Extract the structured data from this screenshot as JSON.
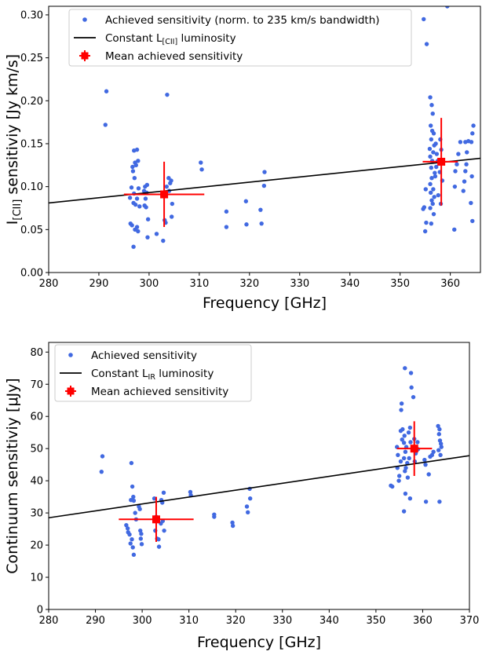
{
  "chart_data": [
    {
      "type": "scatter",
      "xlabel": "Frequency [GHz]",
      "ylabel_main": "I",
      "ylabel_sub": "[CII]",
      "ylabel_rest": " sensitiviy [Jy km/s]",
      "xlim": [
        280,
        366
      ],
      "ylim": [
        0,
        0.31
      ],
      "xticks": [
        280,
        290,
        300,
        310,
        320,
        330,
        340,
        350,
        360
      ],
      "yticks": [
        0.0,
        0.05,
        0.1,
        0.15,
        0.2,
        0.25,
        0.3
      ],
      "ytick_labels": [
        "0.00",
        "0.05",
        "0.10",
        "0.15",
        "0.20",
        "0.25",
        "0.30"
      ],
      "legend_position": "top-left",
      "legend": {
        "points": "Achieved sensitivity (norm. to 235 km/s bandwidth)",
        "line_main": "Constant L",
        "line_sub": "[CII]",
        "line_rest": " luminosity",
        "mean": "Mean achieved sensitivity"
      },
      "colors": {
        "points": "#4169e1",
        "line": "#000000",
        "mean": "#ff0000"
      },
      "line": {
        "x": [
          280,
          366
        ],
        "y": [
          0.081,
          0.133
        ]
      },
      "mean_points": [
        {
          "x": 303.0,
          "y": 0.091,
          "xerr": [
            295.0,
            311.0
          ],
          "yerr": [
            0.053,
            0.129
          ]
        },
        {
          "x": 358.2,
          "y": 0.129,
          "xerr": [
            354.5,
            361.5
          ],
          "yerr": [
            0.078,
            0.18
          ]
        }
      ],
      "points": [
        [
          291.5,
          0.211
        ],
        [
          291.3,
          0.172
        ],
        [
          297.0,
          0.142
        ],
        [
          297.6,
          0.143
        ],
        [
          297.2,
          0.128
        ],
        [
          297.4,
          0.125
        ],
        [
          297.8,
          0.13
        ],
        [
          296.7,
          0.123
        ],
        [
          296.8,
          0.118
        ],
        [
          297.1,
          0.11
        ],
        [
          296.5,
          0.099
        ],
        [
          297.9,
          0.098
        ],
        [
          297.0,
          0.092
        ],
        [
          296.2,
          0.087
        ],
        [
          297.6,
          0.086
        ],
        [
          296.9,
          0.081
        ],
        [
          297.3,
          0.079
        ],
        [
          298.1,
          0.077
        ],
        [
          296.3,
          0.057
        ],
        [
          296.6,
          0.055
        ],
        [
          297.6,
          0.053
        ],
        [
          297.2,
          0.05
        ],
        [
          297.8,
          0.048
        ],
        [
          296.9,
          0.03
        ],
        [
          299.2,
          0.1
        ],
        [
          299.6,
          0.102
        ],
        [
          299.0,
          0.095
        ],
        [
          299.5,
          0.093
        ],
        [
          299.3,
          0.086
        ],
        [
          299.1,
          0.078
        ],
        [
          299.4,
          0.076
        ],
        [
          299.8,
          0.062
        ],
        [
          299.7,
          0.041
        ],
        [
          302.8,
          0.037
        ],
        [
          303.1,
          0.061
        ],
        [
          303.3,
          0.058
        ],
        [
          303.6,
          0.207
        ],
        [
          303.9,
          0.11
        ],
        [
          304.2,
          0.104
        ],
        [
          303.5,
          0.1
        ],
        [
          304.4,
          0.107
        ],
        [
          304.0,
          0.095
        ],
        [
          304.6,
          0.08
        ],
        [
          304.5,
          0.065
        ],
        [
          301.5,
          0.045
        ],
        [
          310.3,
          0.128
        ],
        [
          310.5,
          0.12
        ],
        [
          315.4,
          0.071
        ],
        [
          315.4,
          0.053
        ],
        [
          319.3,
          0.083
        ],
        [
          319.4,
          0.056
        ],
        [
          322.2,
          0.073
        ],
        [
          322.4,
          0.057
        ],
        [
          323.0,
          0.117
        ],
        [
          322.9,
          0.101
        ],
        [
          354.7,
          0.295
        ],
        [
          355.3,
          0.266
        ],
        [
          355.1,
          0.097
        ],
        [
          354.8,
          0.076
        ],
        [
          354.6,
          0.074
        ],
        [
          355.2,
          0.058
        ],
        [
          355.0,
          0.048
        ],
        [
          356.0,
          0.204
        ],
        [
          356.3,
          0.195
        ],
        [
          356.5,
          0.185
        ],
        [
          356.1,
          0.171
        ],
        [
          356.4,
          0.165
        ],
        [
          356.7,
          0.162
        ],
        [
          356.2,
          0.155
        ],
        [
          356.8,
          0.148
        ],
        [
          355.9,
          0.144
        ],
        [
          356.6,
          0.14
        ],
        [
          356.0,
          0.135
        ],
        [
          356.4,
          0.13
        ],
        [
          356.2,
          0.122
        ],
        [
          356.9,
          0.116
        ],
        [
          356.3,
          0.11
        ],
        [
          356.0,
          0.103
        ],
        [
          356.6,
          0.097
        ],
        [
          356.1,
          0.093
        ],
        [
          356.8,
          0.088
        ],
        [
          356.3,
          0.084
        ],
        [
          356.5,
          0.08
        ],
        [
          356.0,
          0.075
        ],
        [
          356.7,
          0.068
        ],
        [
          356.2,
          0.057
        ],
        [
          357.0,
          0.112
        ],
        [
          357.2,
          0.123
        ],
        [
          357.5,
          0.13
        ],
        [
          357.3,
          0.138
        ],
        [
          357.1,
          0.15
        ],
        [
          357.6,
          0.09
        ],
        [
          358.0,
          0.155
        ],
        [
          358.2,
          0.143
        ],
        [
          357.9,
          0.117
        ],
        [
          358.4,
          0.107
        ],
        [
          358.1,
          0.08
        ],
        [
          359.4,
          0.31
        ],
        [
          360.8,
          0.05
        ],
        [
          360.9,
          0.1
        ],
        [
          361.0,
          0.118
        ],
        [
          361.3,
          0.126
        ],
        [
          361.6,
          0.138
        ],
        [
          362.0,
          0.152
        ],
        [
          362.6,
          0.095
        ],
        [
          362.8,
          0.106
        ],
        [
          363.0,
          0.118
        ],
        [
          363.2,
          0.126
        ],
        [
          363.3,
          0.14
        ],
        [
          363.0,
          0.152
        ],
        [
          363.6,
          0.153
        ],
        [
          364.2,
          0.152
        ],
        [
          364.4,
          0.162
        ],
        [
          364.6,
          0.171
        ],
        [
          364.4,
          0.06
        ],
        [
          364.1,
          0.081
        ],
        [
          364.3,
          0.112
        ]
      ]
    },
    {
      "type": "scatter",
      "xlabel": "Frequency [GHz]",
      "ylabel": "Continuum sensitiviy [μJy]",
      "xlim": [
        280,
        370
      ],
      "ylim": [
        0,
        83
      ],
      "xticks": [
        280,
        290,
        300,
        310,
        320,
        330,
        340,
        350,
        360,
        370
      ],
      "yticks": [
        0,
        10,
        20,
        30,
        40,
        50,
        60,
        70,
        80
      ],
      "ytick_labels": [
        "0",
        "10",
        "20",
        "30",
        "40",
        "50",
        "60",
        "70",
        "80"
      ],
      "legend_position": "top-left",
      "legend": {
        "points": "Achieved sensitivity",
        "line_main": "Constant L",
        "line_sub": "IR",
        "line_rest": " luminosity",
        "mean": "Mean achieved sensitivity"
      },
      "colors": {
        "points": "#4169e1",
        "line": "#000000",
        "mean": "#ff0000"
      },
      "line": {
        "x": [
          280,
          370
        ],
        "y": [
          28.5,
          47.8
        ]
      },
      "mean_points": [
        {
          "x": 303.0,
          "y": 28.0,
          "xerr": [
            295.0,
            311.0
          ],
          "yerr": [
            21.0,
            35.0
          ]
        },
        {
          "x": 358.2,
          "y": 50.0,
          "xerr": [
            354.5,
            362.0
          ],
          "yerr": [
            41.5,
            58.5
          ]
        }
      ],
      "points": [
        [
          291.5,
          47.6
        ],
        [
          291.3,
          42.8
        ],
        [
          296.6,
          26.2
        ],
        [
          296.9,
          25.2
        ],
        [
          297.0,
          24.0
        ],
        [
          297.3,
          23.3
        ],
        [
          297.8,
          21.8
        ],
        [
          297.5,
          20.5
        ],
        [
          298.0,
          19.3
        ],
        [
          298.2,
          17.0
        ],
        [
          297.7,
          45.5
        ],
        [
          297.9,
          38.2
        ],
        [
          298.1,
          35.0
        ],
        [
          298.2,
          33.8
        ],
        [
          297.6,
          34.0
        ],
        [
          298.5,
          30.0
        ],
        [
          298.7,
          28.0
        ],
        [
          299.3,
          32.0
        ],
        [
          299.5,
          31.2
        ],
        [
          299.6,
          24.5
        ],
        [
          299.8,
          23.5
        ],
        [
          299.7,
          22.0
        ],
        [
          299.9,
          20.3
        ],
        [
          302.6,
          34.5
        ],
        [
          303.0,
          28.8
        ],
        [
          302.8,
          24.5
        ],
        [
          303.2,
          22.0
        ],
        [
          303.5,
          21.8
        ],
        [
          303.6,
          19.5
        ],
        [
          304.1,
          34.0
        ],
        [
          304.3,
          33.2
        ],
        [
          304.6,
          36.3
        ],
        [
          304.4,
          27.5
        ],
        [
          304.0,
          26.7
        ],
        [
          304.7,
          24.5
        ],
        [
          310.3,
          36.5
        ],
        [
          310.4,
          35.5
        ],
        [
          315.4,
          29.5
        ],
        [
          315.4,
          28.8
        ],
        [
          319.3,
          27.0
        ],
        [
          319.4,
          26.0
        ],
        [
          322.4,
          32.0
        ],
        [
          322.6,
          30.2
        ],
        [
          323.0,
          37.5
        ],
        [
          323.1,
          34.5
        ],
        [
          353.2,
          38.5
        ],
        [
          353.5,
          38.2
        ],
        [
          354.5,
          50.5
        ],
        [
          354.7,
          48.0
        ],
        [
          354.6,
          44.0
        ],
        [
          355.0,
          41.5
        ],
        [
          354.9,
          40.0
        ],
        [
          355.3,
          46.0
        ],
        [
          355.5,
          64.0
        ],
        [
          355.4,
          62.0
        ],
        [
          355.7,
          56.0
        ],
        [
          355.3,
          55.5
        ],
        [
          356.1,
          54.0
        ],
        [
          355.6,
          52.8
        ],
        [
          356.0,
          51.8
        ],
        [
          356.5,
          50.5
        ],
        [
          356.3,
          49.0
        ],
        [
          356.0,
          47.0
        ],
        [
          356.7,
          45.5
        ],
        [
          356.4,
          44.0
        ],
        [
          356.2,
          43.0
        ],
        [
          356.8,
          41.0
        ],
        [
          356.3,
          36.0
        ],
        [
          356.0,
          30.5
        ],
        [
          356.2,
          75.0
        ],
        [
          357.5,
          73.5
        ],
        [
          357.6,
          69.0
        ],
        [
          357.3,
          56.5
        ],
        [
          357.0,
          55.0
        ],
        [
          357.4,
          52.0
        ],
        [
          357.1,
          47.0
        ],
        [
          357.3,
          34.5
        ],
        [
          358.0,
          66.0
        ],
        [
          358.2,
          53.0
        ],
        [
          358.5,
          48.5
        ],
        [
          358.3,
          46.0
        ],
        [
          358.9,
          52.0
        ],
        [
          359.0,
          49.8
        ],
        [
          360.4,
          46.5
        ],
        [
          360.6,
          45.0
        ],
        [
          360.7,
          33.5
        ],
        [
          361.3,
          42.0
        ],
        [
          361.6,
          47.5
        ],
        [
          362.0,
          48.0
        ],
        [
          362.3,
          49.0
        ],
        [
          363.3,
          57.0
        ],
        [
          363.6,
          56.0
        ],
        [
          363.5,
          54.5
        ],
        [
          363.7,
          52.5
        ],
        [
          363.9,
          51.5
        ],
        [
          364.0,
          50.5
        ],
        [
          363.4,
          49.5
        ],
        [
          363.8,
          48.0
        ],
        [
          363.6,
          33.5
        ]
      ]
    }
  ]
}
